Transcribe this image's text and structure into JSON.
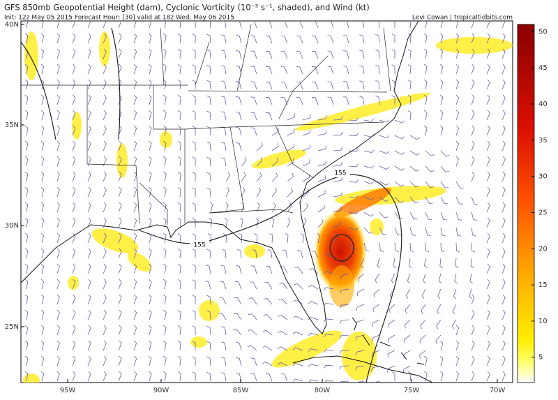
{
  "header": {
    "title": "GFS 850mb Geopotential Height (dam), Cyclonic Vorticity (10⁻⁵ s⁻¹, shaded), and Wind (kt)",
    "subtitle": "Init: 12z May 05 2015   Forecast Hour: [30]   valid at 18z Wed, May 06 2015",
    "credit": "Levi Cowan | tropicaltidbits.com"
  },
  "map": {
    "lat_labels": [
      "40N",
      "35N",
      "30N",
      "25N"
    ],
    "lon_labels": [
      "95W",
      "90W",
      "85W",
      "80W",
      "75W",
      "70W"
    ],
    "contour_labels": [
      "155",
      "155"
    ]
  },
  "colorbar": {
    "range": [
      1.5,
      51
    ],
    "ticks": [
      5,
      10,
      15,
      20,
      25,
      30,
      35,
      40,
      45,
      50
    ]
  }
}
